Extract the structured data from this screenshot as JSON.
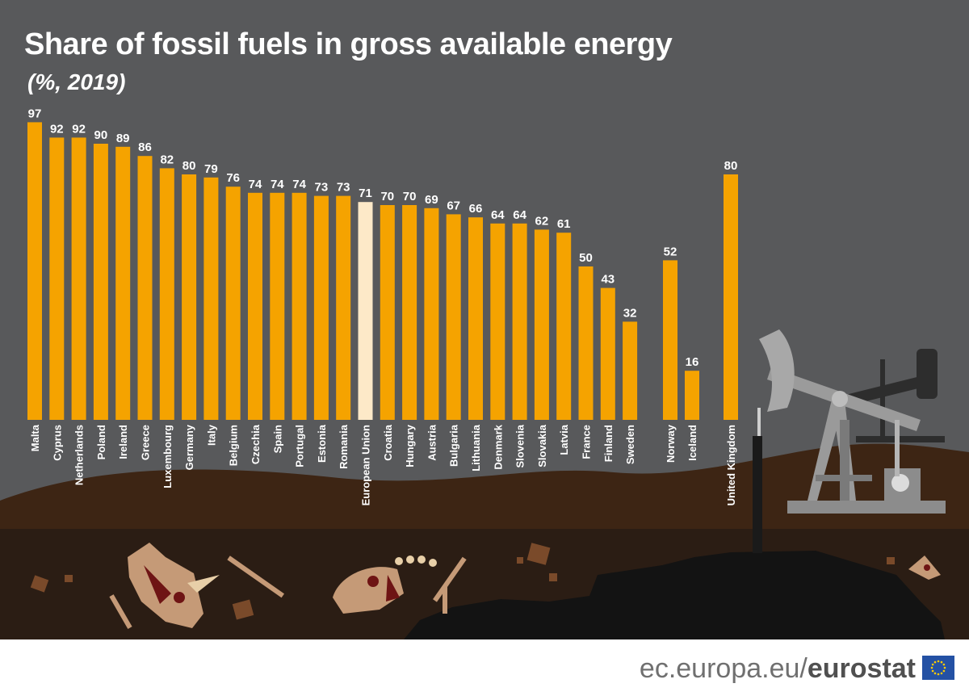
{
  "title": "Share of fossil fuels in gross available energy",
  "subtitle": "(%, 2019)",
  "footer": {
    "domain": "ec.europa.eu/",
    "brand": "eurostat"
  },
  "colors": {
    "background": "#58595b",
    "bar": "#f5a300",
    "bar_highlight": "#fde9c8",
    "ground": "#3d2514",
    "ground_deep": "#2b1d14",
    "fossil": "#c59a77"
  },
  "chart_data": {
    "type": "bar",
    "title": "Share of fossil fuels in gross available energy",
    "subtitle": "(%, 2019)",
    "xlabel": "",
    "ylabel": "",
    "ylim": [
      0,
      100
    ],
    "grid": false,
    "highlight": "European Union",
    "categories": [
      "Malta",
      "Cyprus",
      "Netherlands",
      "Poland",
      "Ireland",
      "Greece",
      "Luxembourg",
      "Germany",
      "Italy",
      "Belgium",
      "Czechia",
      "Spain",
      "Portugal",
      "Estonia",
      "Romania",
      "European Union",
      "Croatia",
      "Hungary",
      "Austria",
      "Bulgaria",
      "Lithuania",
      "Denmark",
      "Slovenia",
      "Slovakia",
      "Latvia",
      "France",
      "Finland",
      "Sweden",
      "Norway",
      "Iceland",
      "United Kingdom"
    ],
    "values": [
      97,
      92,
      92,
      90,
      89,
      86,
      82,
      80,
      79,
      76,
      74,
      74,
      74,
      73,
      73,
      71,
      70,
      70,
      69,
      67,
      66,
      64,
      64,
      62,
      61,
      50,
      43,
      32,
      52,
      16,
      80
    ]
  }
}
